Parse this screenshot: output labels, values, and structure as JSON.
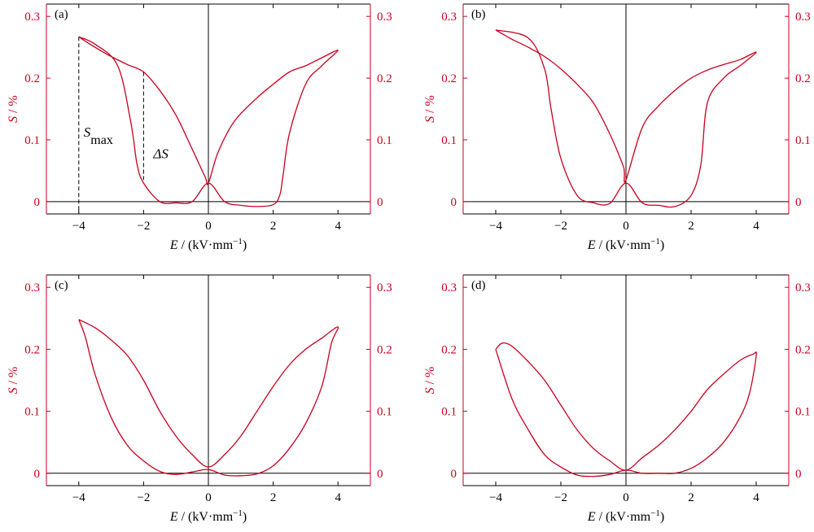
{
  "colors": {
    "curve": "#c8001e",
    "axis": "#000000"
  },
  "x_tick_labels": [
    "−4",
    "−2",
    "0",
    "2",
    "4"
  ],
  "y_tick_labels": [
    "0",
    "0.1",
    "0.2",
    "0.3"
  ],
  "xlabel": "E / (kV·mm⁻¹)",
  "ylabel": "S / %",
  "annotations": {
    "smax_base": "S",
    "smax_sub": "max",
    "delta_s": "ΔS"
  },
  "chart_data": [
    {
      "type": "line",
      "panel": "(a)",
      "xlim": [
        -5,
        5
      ],
      "ylim": [
        -0.02,
        0.32
      ],
      "xlabel": "E / (kV·mm⁻¹)",
      "ylabel": "S / %",
      "series": [
        {
          "x": [
            -4.0,
            -3.5,
            -3.0,
            -2.5,
            -2.0,
            -1.5,
            -1.0,
            -0.5,
            -0.1,
            0.0,
            0.3,
            0.8,
            1.5,
            2.0,
            2.5,
            3.0,
            3.5,
            4.0,
            3.5,
            3.0,
            2.5,
            2.3,
            2.2,
            2.0,
            1.5,
            1.0,
            0.5,
            0.0,
            -0.5,
            -1.0,
            -1.5,
            -2.0,
            -2.2,
            -2.4,
            -2.8,
            -3.5,
            -4.0
          ],
          "y": [
            0.267,
            0.25,
            0.235,
            0.222,
            0.21,
            0.18,
            0.14,
            0.085,
            0.04,
            0.03,
            0.08,
            0.13,
            0.168,
            0.19,
            0.21,
            0.22,
            0.233,
            0.245,
            0.22,
            0.19,
            0.11,
            0.04,
            0.01,
            -0.005,
            -0.008,
            -0.006,
            0.0,
            0.03,
            0.0,
            -0.002,
            0.0,
            0.03,
            0.06,
            0.13,
            0.22,
            0.255,
            0.267
          ]
        }
      ],
      "annotations": [
        "Smax",
        "ΔS"
      ]
    },
    {
      "type": "line",
      "panel": "(b)",
      "xlim": [
        -5,
        5
      ],
      "ylim": [
        -0.02,
        0.32
      ],
      "xlabel": "E / (kV·mm⁻¹)",
      "ylabel": "S / %",
      "series": [
        {
          "x": [
            -4.0,
            -3.5,
            -3.0,
            -2.5,
            -2.0,
            -1.5,
            -1.0,
            -0.5,
            -0.1,
            -0.05,
            0.0,
            0.5,
            1.0,
            1.5,
            2.0,
            2.5,
            3.0,
            3.5,
            4.0,
            3.5,
            3.0,
            2.5,
            2.3,
            2.0,
            1.5,
            1.0,
            0.5,
            0.0,
            -0.5,
            -1.0,
            -1.5,
            -2.0,
            -2.3,
            -2.5,
            -3.0,
            -4.0
          ],
          "y": [
            0.278,
            0.263,
            0.25,
            0.235,
            0.215,
            0.19,
            0.16,
            0.11,
            0.06,
            0.048,
            0.035,
            0.12,
            0.155,
            0.18,
            0.2,
            0.213,
            0.222,
            0.23,
            0.242,
            0.22,
            0.2,
            0.16,
            0.06,
            0.01,
            -0.008,
            -0.006,
            -0.002,
            0.03,
            -0.003,
            -0.002,
            0.01,
            0.07,
            0.15,
            0.215,
            0.265,
            0.278
          ]
        }
      ]
    },
    {
      "type": "line",
      "panel": "(c)",
      "xlim": [
        -5,
        5
      ],
      "ylim": [
        -0.02,
        0.32
      ],
      "xlabel": "E / (kV·mm⁻¹)",
      "ylabel": "S / %",
      "series": [
        {
          "x": [
            -4.0,
            -3.5,
            -3.0,
            -2.5,
            -2.0,
            -1.5,
            -1.0,
            -0.5,
            0.0,
            0.5,
            1.0,
            1.5,
            2.0,
            2.5,
            3.0,
            3.5,
            4.0,
            3.8,
            3.5,
            3.0,
            2.5,
            2.0,
            1.5,
            1.0,
            0.5,
            0.0,
            -0.5,
            -1.0,
            -1.5,
            -2.0,
            -2.5,
            -3.0,
            -3.5,
            -3.8,
            -4.0
          ],
          "y": [
            0.248,
            0.235,
            0.215,
            0.19,
            0.15,
            0.1,
            0.06,
            0.03,
            0.01,
            0.03,
            0.06,
            0.1,
            0.14,
            0.175,
            0.2,
            0.218,
            0.236,
            0.21,
            0.14,
            0.08,
            0.04,
            0.012,
            -0.001,
            -0.004,
            -0.003,
            0.006,
            0.002,
            -0.002,
            0.003,
            0.02,
            0.045,
            0.09,
            0.16,
            0.22,
            0.248
          ]
        }
      ]
    },
    {
      "type": "line",
      "panel": "(d)",
      "xlim": [
        -5,
        5
      ],
      "ylim": [
        -0.02,
        0.32
      ],
      "xlabel": "E / (kV·mm⁻¹)",
      "ylabel": "S / %",
      "series": [
        {
          "x": [
            -4.0,
            -3.8,
            -3.5,
            -3.0,
            -2.5,
            -2.0,
            -1.5,
            -1.0,
            -0.5,
            0.0,
            0.5,
            1.0,
            1.5,
            2.0,
            2.5,
            3.0,
            3.5,
            3.9,
            4.0,
            3.8,
            3.5,
            3.0,
            2.5,
            2.0,
            1.5,
            1.0,
            0.5,
            0.0,
            -0.5,
            -1.0,
            -1.5,
            -2.0,
            -2.5,
            -3.0,
            -3.5,
            -4.0
          ],
          "y": [
            0.2,
            0.21,
            0.205,
            0.18,
            0.15,
            0.11,
            0.07,
            0.04,
            0.02,
            0.005,
            0.025,
            0.045,
            0.07,
            0.1,
            0.135,
            0.16,
            0.182,
            0.192,
            0.19,
            0.13,
            0.09,
            0.05,
            0.025,
            0.008,
            0.0,
            0.0,
            0.0,
            0.005,
            -0.002,
            -0.005,
            -0.003,
            0.01,
            0.03,
            0.07,
            0.12,
            0.2
          ]
        }
      ]
    }
  ]
}
